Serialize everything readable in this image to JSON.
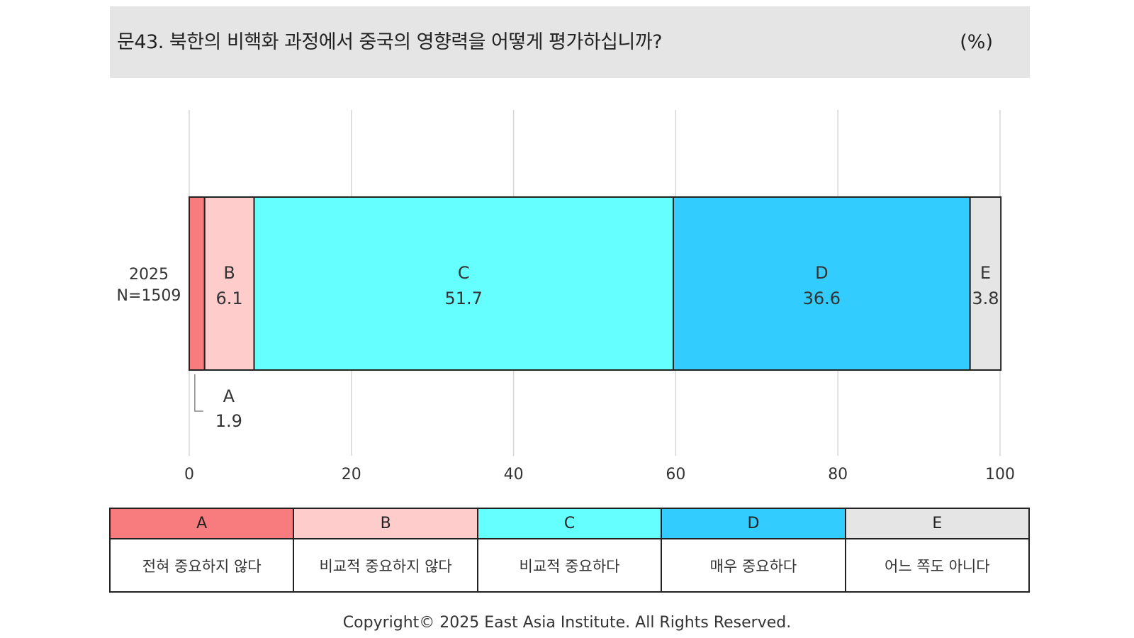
{
  "title": "문43. 북한의 비핵화 과정에서 중국의 영향력을 어떻게 평가하십니까?",
  "unit": "(%)",
  "chart_data": {
    "type": "bar",
    "orientation": "horizontal",
    "stacked": true,
    "row_label_year": "2025",
    "row_label_n": "N=1509",
    "series": [
      {
        "key": "A",
        "value": 1.9,
        "value_label": "1.9",
        "color": "#f87c7e"
      },
      {
        "key": "B",
        "value": 6.1,
        "value_label": "6.1",
        "color": "#ffcccc"
      },
      {
        "key": "C",
        "value": 51.7,
        "value_label": "51.7",
        "color": "#66ffff"
      },
      {
        "key": "D",
        "value": 36.6,
        "value_label": "36.6",
        "color": "#33ccff"
      },
      {
        "key": "E",
        "value": 3.8,
        "value_label": "3.8",
        "color": "#e5e5e5"
      }
    ],
    "xlim": [
      0,
      100
    ],
    "ticks": [
      "0",
      "20",
      "40",
      "60",
      "80",
      "100"
    ],
    "tick_values": [
      0,
      20,
      40,
      60,
      80,
      100
    ],
    "grid": true
  },
  "legend": [
    {
      "key": "A",
      "label": "전혀 중요하지 않다",
      "color": "#f87c7e"
    },
    {
      "key": "B",
      "label": "비교적 중요하지 않다",
      "color": "#ffcccc"
    },
    {
      "key": "C",
      "label": "비교적 중요하다",
      "color": "#66ffff"
    },
    {
      "key": "D",
      "label": "매우 중요하다",
      "color": "#33ccff"
    },
    {
      "key": "E",
      "label": "어느 쪽도 아니다",
      "color": "#e5e5e5"
    }
  ],
  "copyright": "Copyright© 2025 East Asia Institute. All Rights Reserved."
}
